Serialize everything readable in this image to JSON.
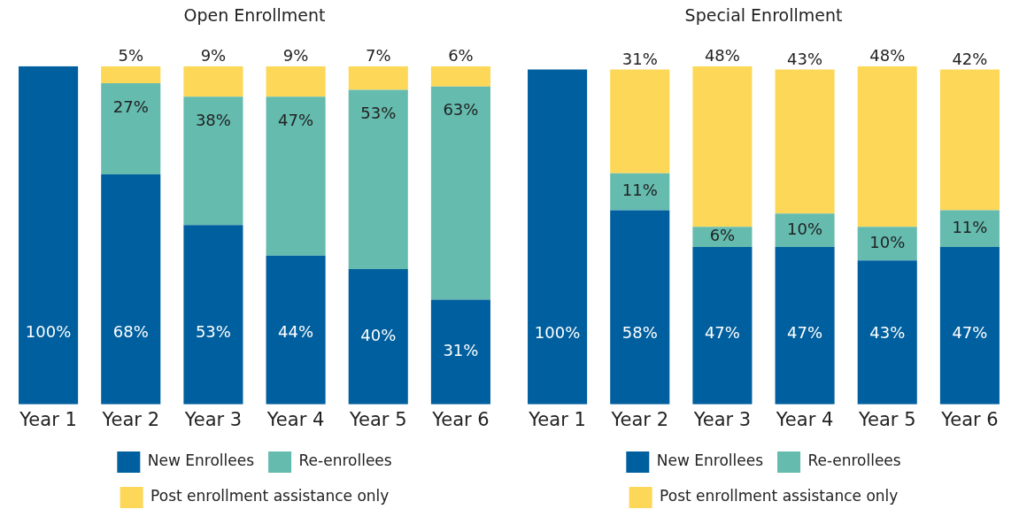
{
  "chart_data": [
    {
      "type": "bar",
      "title": "Open Enrollment",
      "categories": [
        "Year 1",
        "Year 2",
        "Year 3",
        "Year 4",
        "Year 5",
        "Year 6"
      ],
      "stacked": true,
      "legend": "bottom",
      "tick_labels": "x",
      "grid": false,
      "series": [
        {
          "name": "New Enrollees",
          "color": "#005f9e",
          "values": [
            100,
            68,
            53,
            44,
            40,
            31
          ],
          "value_labels": [
            "100%",
            "68%",
            "53%",
            "44%",
            "40%",
            "31%"
          ]
        },
        {
          "name": "Re-enrollees",
          "color": "#64bbae",
          "values": [
            null,
            27,
            38,
            47,
            53,
            63
          ],
          "value_labels": [
            null,
            "27%",
            "38%",
            "47%",
            "53%",
            "63%"
          ]
        },
        {
          "name": "Post enrollment assistance only",
          "color": "#fdd757",
          "values": [
            null,
            5,
            9,
            9,
            7,
            6
          ],
          "value_labels": [
            null,
            "5%",
            "9%",
            "9%",
            "7%",
            "6%"
          ]
        }
      ]
    },
    {
      "type": "bar",
      "title": "Special Enrollment",
      "categories": [
        "Year 1",
        "Year 2",
        "Year 3",
        "Year 4",
        "Year 5",
        "Year 6"
      ],
      "stacked": true,
      "legend": "bottom",
      "tick_labels": "x",
      "grid": false,
      "series": [
        {
          "name": "New Enrollees",
          "color": "#005f9e",
          "values": [
            100,
            58,
            47,
            47,
            43,
            47
          ],
          "value_labels": [
            "100%",
            "58%",
            "47%",
            "47%",
            "43%",
            "47%"
          ]
        },
        {
          "name": "Re-enrollees",
          "color": "#64bbae",
          "values": [
            null,
            11,
            6,
            10,
            10,
            11
          ],
          "value_labels": [
            null,
            "11%",
            "6%",
            "10%",
            "10%",
            "11%"
          ]
        },
        {
          "name": "Post enrollment assistance only",
          "color": "#fdd757",
          "values": [
            null,
            31,
            48,
            43,
            48,
            42
          ],
          "value_labels": [
            null,
            "31%",
            "48%",
            "43%",
            "48%",
            "42%"
          ]
        }
      ]
    }
  ]
}
